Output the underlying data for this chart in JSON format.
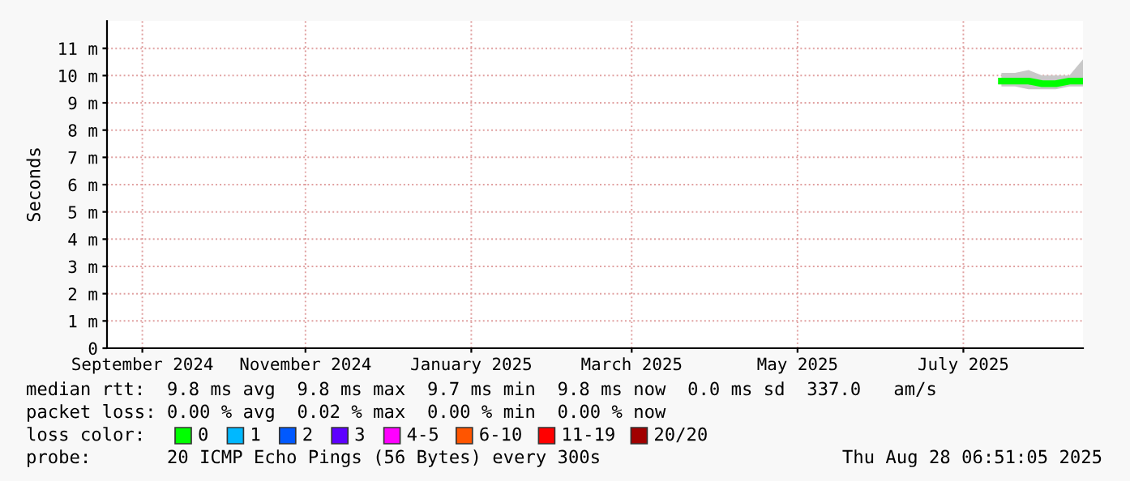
{
  "chart_data": {
    "type": "line",
    "ylabel": "Seconds",
    "x": [
      "2025-07-29",
      "2025-08-03",
      "2025-08-08",
      "2025-08-13",
      "2025-08-18",
      "2025-08-23",
      "2025-08-28"
    ],
    "series": [
      {
        "name": "0",
        "color": "#00ff00",
        "values": [
          9.8,
          9.8,
          9.8,
          9.7,
          9.7,
          9.8,
          9.8
        ],
        "lower": [
          9.6,
          9.6,
          9.5,
          9.5,
          9.5,
          9.6,
          9.6
        ],
        "upper": [
          10.1,
          10.1,
          10.2,
          10.0,
          10.0,
          10.0,
          10.6
        ]
      },
      {
        "name": "1",
        "color": "#00b8ff",
        "values": [
          null,
          null,
          null,
          null,
          null,
          null,
          null
        ]
      },
      {
        "name": "2",
        "color": "#0059ff",
        "values": [
          null,
          null,
          null,
          null,
          null,
          null,
          null
        ]
      },
      {
        "name": "3",
        "color": "#5e00ff",
        "values": [
          null,
          null,
          null,
          null,
          null,
          null,
          null
        ]
      },
      {
        "name": "4-5",
        "color": "#ff00ff",
        "values": [
          null,
          null,
          null,
          null,
          null,
          null,
          null
        ]
      },
      {
        "name": "6-10",
        "color": "#ff5500",
        "values": [
          null,
          null,
          null,
          null,
          null,
          null,
          null
        ]
      },
      {
        "name": "11-19",
        "color": "#ff0000",
        "values": [
          null,
          null,
          null,
          null,
          null,
          null,
          null
        ]
      },
      {
        "name": "20/20",
        "color": "#a10000",
        "values": [
          null,
          null,
          null,
          null,
          null,
          null,
          null
        ]
      }
    ],
    "legend_title": "loss color:",
    "legend": "bottom",
    "xlim": [
      "2024-09-03",
      "2025-08-28"
    ],
    "xticks": [
      {
        "value": "2024-09-16",
        "label": "September 2024"
      },
      {
        "value": "2024-11-15",
        "label": "November 2024"
      },
      {
        "value": "2025-01-15",
        "label": "January 2025"
      },
      {
        "value": "2025-03-15",
        "label": "March 2025"
      },
      {
        "value": "2025-05-15",
        "label": "May 2025"
      },
      {
        "value": "2025-07-15",
        "label": "July 2025"
      }
    ],
    "ylim": [
      0,
      12
    ],
    "yticks": [
      0,
      {
        "value": 1,
        "label": "1 m"
      },
      {
        "value": 2,
        "label": "2 m"
      },
      {
        "value": 3,
        "label": "3 m"
      },
      {
        "value": 4,
        "label": "4 m"
      },
      {
        "value": 5,
        "label": "5 m"
      },
      {
        "value": 6,
        "label": "6 m"
      },
      {
        "value": 7,
        "label": "7 m"
      },
      {
        "value": 8,
        "label": "8 m"
      },
      {
        "value": 9,
        "label": "9 m"
      },
      {
        "value": 10,
        "label": "10 m"
      },
      {
        "value": 11,
        "label": "11 m"
      }
    ],
    "grid": true,
    "annotations": [
      "median rtt:  9.8 ms avg  9.8 ms max  9.7 ms min  9.8 ms now  0.0 ms sd  337.0   am/s",
      "packet loss: 0.00 % avg  0.02 % max  0.00 % min  0.00 % now",
      "probe:       20 ICMP Echo Pings (56 Bytes) every 300s",
      "Thu Aug 28 06:51:05 2025"
    ]
  }
}
